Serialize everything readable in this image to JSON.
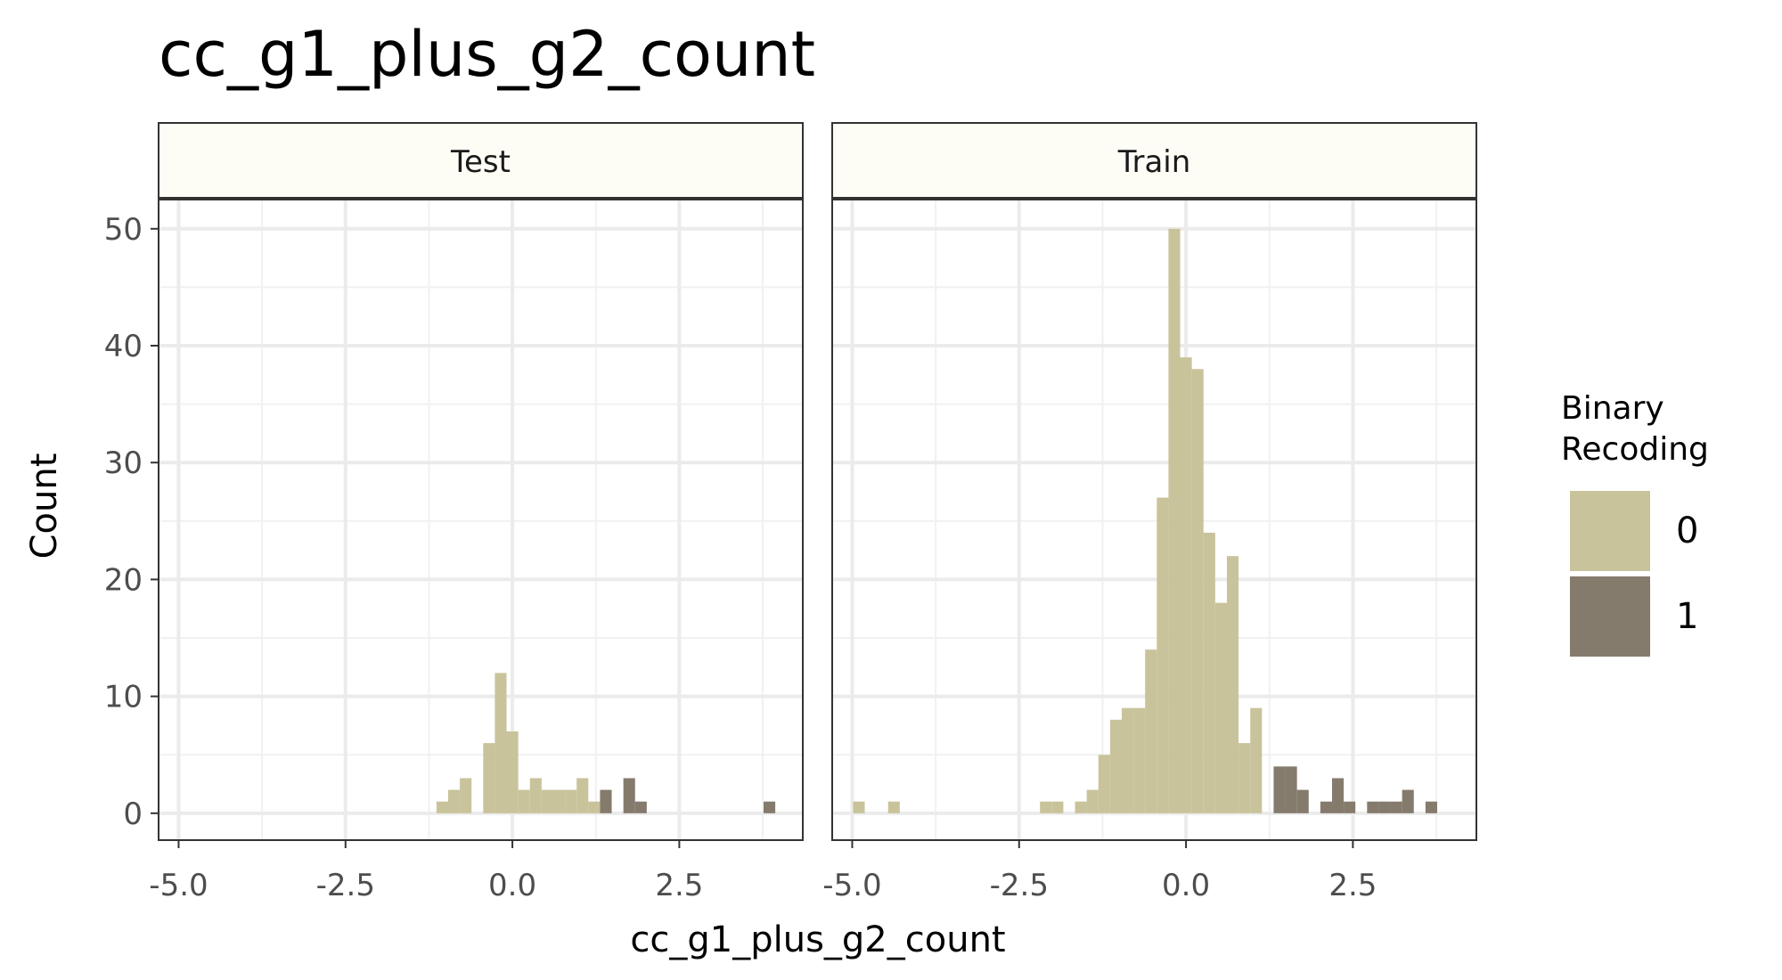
{
  "chart_data": {
    "type": "bar",
    "title": "cc_g1_plus_g2_count",
    "xlabel": "cc_g1_plus_g2_count",
    "ylabel": "Count",
    "xlim": [
      -5.3,
      4.35
    ],
    "ylim": [
      -2.3,
      52.5
    ],
    "x_ticks": [
      -5.0,
      -2.5,
      0.0,
      2.5
    ],
    "x_tick_labels": [
      "-5.0",
      "-2.5",
      "0.0",
      "2.5"
    ],
    "y_ticks": [
      0,
      10,
      20,
      30,
      40,
      50
    ],
    "y_tick_labels": [
      "0",
      "10",
      "20",
      "30",
      "40",
      "50"
    ],
    "grid": true,
    "bin_width": 0.175,
    "legend": {
      "title_line1": "Binary",
      "title_line2": "Recoding",
      "position": "right",
      "entries": [
        {
          "label": "0",
          "color": "#c9c39b"
        },
        {
          "label": "1",
          "color": "#857b6d"
        }
      ]
    },
    "panels": [
      {
        "name": "Test",
        "series": [
          {
            "name": "0",
            "color": "#c9c39b",
            "bins": [
              [
                -1.05,
                1
              ],
              [
                -0.875,
                2
              ],
              [
                -0.7,
                3
              ],
              [
                -0.35,
                6
              ],
              [
                -0.175,
                12
              ],
              [
                0.0,
                7
              ],
              [
                0.175,
                2
              ],
              [
                0.35,
                3
              ],
              [
                0.525,
                2
              ],
              [
                0.7,
                2
              ],
              [
                0.875,
                2
              ],
              [
                1.05,
                3
              ],
              [
                1.225,
                1
              ]
            ]
          },
          {
            "name": "1",
            "color": "#857b6d",
            "bins": [
              [
                1.4,
                2
              ],
              [
                1.75,
                3
              ],
              [
                1.925,
                1
              ],
              [
                3.85,
                1
              ]
            ]
          }
        ]
      },
      {
        "name": "Train",
        "series": [
          {
            "name": "0",
            "color": "#c9c39b",
            "bins": [
              [
                -4.9,
                1
              ],
              [
                -4.375,
                1
              ],
              [
                -2.1,
                1
              ],
              [
                -1.925,
                1
              ],
              [
                -1.575,
                1
              ],
              [
                -1.4,
                2
              ],
              [
                -1.225,
                5
              ],
              [
                -1.05,
                8
              ],
              [
                -0.875,
                9
              ],
              [
                -0.7,
                9
              ],
              [
                -0.525,
                14
              ],
              [
                -0.35,
                27
              ],
              [
                -0.175,
                50
              ],
              [
                0.0,
                39
              ],
              [
                0.175,
                38
              ],
              [
                0.35,
                24
              ],
              [
                0.525,
                18
              ],
              [
                0.7,
                22
              ],
              [
                0.875,
                6
              ],
              [
                1.05,
                9
              ]
            ]
          },
          {
            "name": "1",
            "color": "#857b6d",
            "bins": [
              [
                1.4,
                4
              ],
              [
                1.575,
                4
              ],
              [
                1.75,
                2
              ],
              [
                2.1,
                1
              ],
              [
                2.275,
                3
              ],
              [
                2.45,
                1
              ],
              [
                2.8,
                1
              ],
              [
                2.975,
                1
              ],
              [
                3.15,
                1
              ],
              [
                3.325,
                2
              ],
              [
                3.675,
                1
              ]
            ]
          }
        ]
      }
    ]
  }
}
